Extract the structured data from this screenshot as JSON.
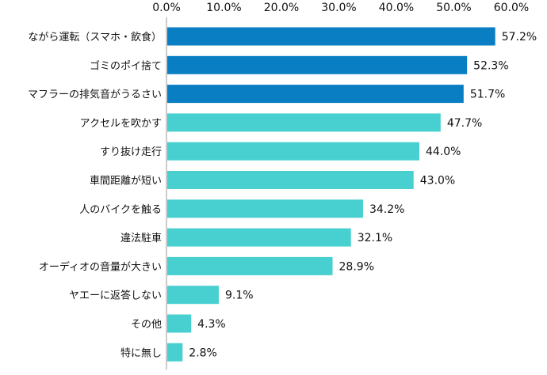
{
  "chart_data": {
    "type": "bar",
    "orientation": "horizontal",
    "categories": [
      "ながら運転（スマホ・飲食）",
      "ゴミのポイ捨て",
      "マフラーの排気音がうるさい",
      "アクセルを吹かす",
      "すり抜け走行",
      "車間距離が短い",
      "人のバイクを触る",
      "違法駐車",
      "オーディオの音量が大きい",
      "ヤエーに返答しない",
      "その他",
      "特に無し"
    ],
    "values": [
      57.2,
      52.3,
      51.7,
      47.7,
      44.0,
      43.0,
      34.2,
      32.1,
      28.9,
      9.1,
      4.3,
      2.8
    ],
    "value_labels": [
      "57.2%",
      "52.3%",
      "51.7%",
      "47.7%",
      "44.0%",
      "43.0%",
      "34.2%",
      "32.1%",
      "28.9%",
      "9.1%",
      "4.3%",
      "2.8%"
    ],
    "xlim": [
      0,
      60
    ],
    "x_ticks": [
      0,
      10,
      20,
      30,
      40,
      50,
      60
    ],
    "x_tick_labels": [
      "0.0%",
      "10.0%",
      "20.0%",
      "30.0%",
      "40.0%",
      "50.0%",
      "60.0%"
    ],
    "x_axis_position": "top",
    "grid": false,
    "highlight_count": 3,
    "colors": {
      "highlight": "#0A7EC2",
      "normal": "#48CFD0",
      "axis": "#999999"
    }
  }
}
